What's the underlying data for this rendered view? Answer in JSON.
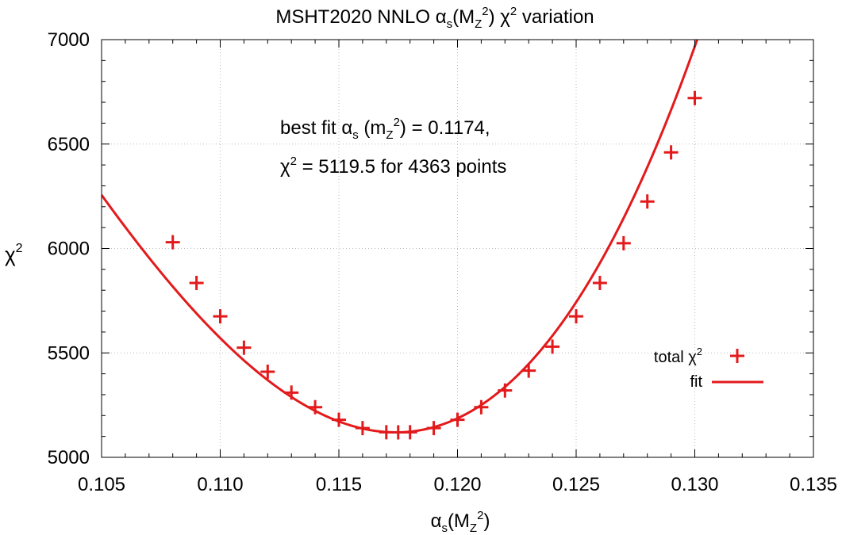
{
  "chart_data": {
    "type": "scatter",
    "title": {
      "main": "MSHT2020 NNLO ",
      "greek": "α",
      "sub": "s",
      "open": "(M",
      "sub2": "Z",
      "sup2": "2",
      "close": ") ",
      "chi": "χ",
      "sup": "2",
      "rest": " variation"
    },
    "xlabel": {
      "greek": "α",
      "sub": "s",
      "open": "(M",
      "sub2": "Z",
      "sup": "2",
      "close": ")"
    },
    "ylabel": {
      "chi": "χ",
      "sup": "2"
    },
    "xlim": [
      0.105,
      0.135
    ],
    "ylim": [
      5000,
      7000
    ],
    "xticks": [
      "0.105",
      "0.110",
      "0.115",
      "0.120",
      "0.125",
      "0.130",
      "0.135"
    ],
    "yticks": [
      "5000",
      "5500",
      "6000",
      "6500",
      "7000"
    ],
    "grid": true,
    "annotations": {
      "line1": {
        "pre": "best fit ",
        "greek": "α",
        "sub": "s",
        "open": " (m",
        "sub2": "Z",
        "sup": "2",
        "close": ") = 0.1174,"
      },
      "line2": {
        "chi": "χ",
        "sup": "2",
        "rest": " = 5119.5 for 4363 points"
      }
    },
    "legend": {
      "position": "bottom-right",
      "entries": [
        {
          "label": "total χ",
          "sup": "2",
          "kind": "marker"
        },
        {
          "label": "fit",
          "kind": "line"
        }
      ]
    },
    "series": [
      {
        "name": "total χ2",
        "kind": "points",
        "x": [
          0.108,
          0.109,
          0.11,
          0.111,
          0.112,
          0.113,
          0.114,
          0.115,
          0.116,
          0.117,
          0.1175,
          0.118,
          0.119,
          0.12,
          0.121,
          0.122,
          0.123,
          0.124,
          0.125,
          0.126,
          0.127,
          0.128,
          0.129,
          0.13
        ],
        "y": [
          6030,
          5835,
          5675,
          5525,
          5410,
          5310,
          5240,
          5180,
          5140,
          5120,
          5119.5,
          5120,
          5140,
          5180,
          5240,
          5320,
          5415,
          5530,
          5675,
          5835,
          6025,
          6225,
          6460,
          6720
        ]
      },
      {
        "name": "fit",
        "kind": "line",
        "model": "cubic",
        "x0": 0.1174,
        "y0": 5119.5,
        "a": 9500000,
        "b": 170000000
      }
    ],
    "colors": {
      "series": "#e31a1c",
      "grid": "#bbbbbb",
      "axis": "#000000"
    }
  }
}
